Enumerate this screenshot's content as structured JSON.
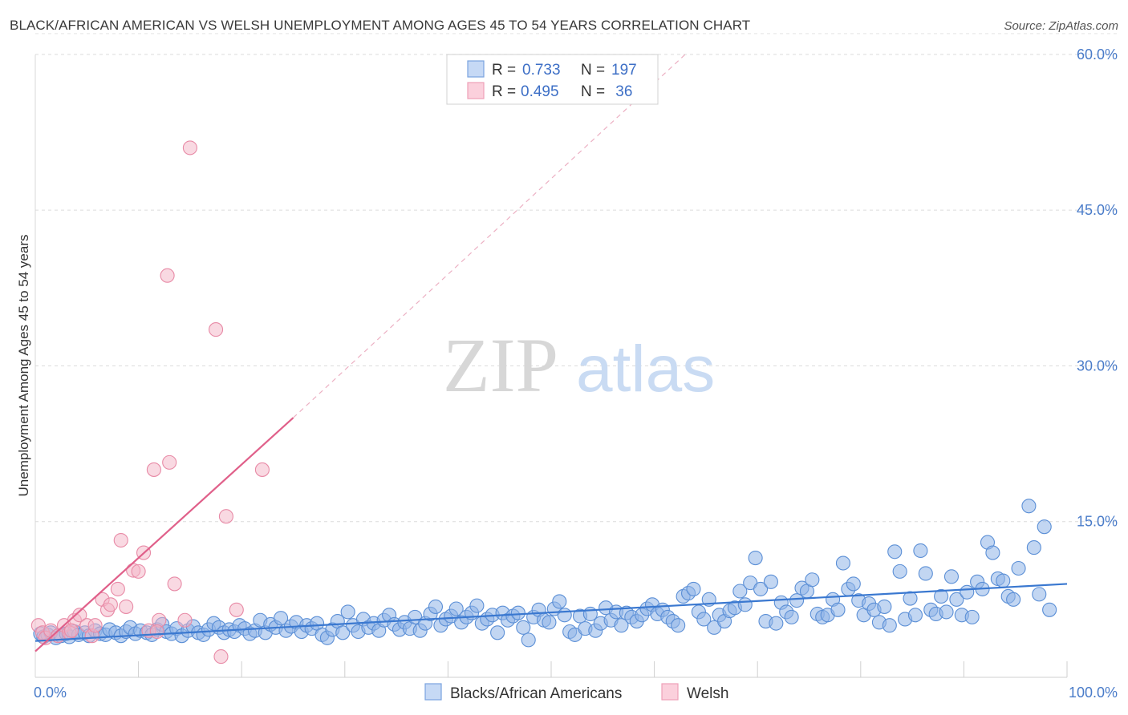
{
  "title": "BLACK/AFRICAN AMERICAN VS WELSH UNEMPLOYMENT AMONG AGES 45 TO 54 YEARS CORRELATION CHART",
  "source": "Source: ZipAtlas.com",
  "watermark": {
    "zip": "ZIP",
    "atlas": "atlas"
  },
  "colors": {
    "blue": "#8fb4e8",
    "blue_stroke": "#5b8fd6",
    "blue_line": "#3a78d0",
    "pink": "#f4b3c6",
    "pink_stroke": "#e88aa6",
    "pink_line": "#e0608a"
  },
  "legend": {
    "rows": [
      {
        "r_label": "R =",
        "r_value": "0.733",
        "n_label": "N =",
        "n_value": "197"
      },
      {
        "r_label": "R =",
        "r_value": "0.495",
        "n_label": "N =",
        "n_value": " 36"
      }
    ]
  },
  "bottom_legend": [
    "Blacks/African Americans",
    "Welsh"
  ],
  "chart_data": {
    "type": "scatter",
    "xlabel": "",
    "ylabel": "Unemployment Among Ages 45 to 54 years",
    "xlim": [
      0,
      100
    ],
    "ylim": [
      0,
      64
    ],
    "x_tick_labels": [
      "0.0%",
      "100.0%"
    ],
    "y_ticks": [
      15,
      30,
      45,
      60
    ],
    "y_tick_labels": [
      "15.0%",
      "30.0%",
      "45.0%",
      "60.0%"
    ],
    "grid": true,
    "legend_position": "top-center",
    "series": [
      {
        "name": "Blacks/African Americans",
        "trend": {
          "x": [
            0,
            100
          ],
          "y": [
            3.5,
            9.0
          ]
        },
        "points": [
          [
            0.5,
            4.2
          ],
          [
            0.8,
            3.9
          ],
          [
            1.2,
            4.1
          ],
          [
            1.5,
            4.3
          ],
          [
            2.0,
            3.8
          ],
          [
            2.5,
            4.0
          ],
          [
            3.0,
            4.2
          ],
          [
            3.3,
            3.9
          ],
          [
            3.8,
            4.4
          ],
          [
            4.2,
            4.1
          ],
          [
            4.8,
            4.3
          ],
          [
            5.2,
            4.0
          ],
          [
            5.8,
            4.5
          ],
          [
            6.3,
            4.2
          ],
          [
            6.8,
            4.1
          ],
          [
            7.2,
            4.6
          ],
          [
            7.8,
            4.3
          ],
          [
            8.3,
            4.0
          ],
          [
            8.8,
            4.4
          ],
          [
            9.2,
            4.8
          ],
          [
            9.7,
            4.2
          ],
          [
            10.2,
            4.5
          ],
          [
            10.8,
            4.3
          ],
          [
            11.3,
            4.1
          ],
          [
            11.8,
            4.6
          ],
          [
            12.3,
            5.1
          ],
          [
            12.7,
            4.4
          ],
          [
            13.2,
            4.2
          ],
          [
            13.7,
            4.7
          ],
          [
            14.2,
            4.0
          ],
          [
            14.8,
            4.5
          ],
          [
            15.3,
            4.9
          ],
          [
            15.8,
            4.3
          ],
          [
            16.3,
            4.1
          ],
          [
            16.8,
            4.6
          ],
          [
            17.3,
            5.2
          ],
          [
            17.8,
            4.8
          ],
          [
            18.3,
            4.3
          ],
          [
            18.8,
            4.6
          ],
          [
            19.3,
            4.4
          ],
          [
            19.8,
            5.0
          ],
          [
            20.3,
            4.7
          ],
          [
            20.8,
            4.2
          ],
          [
            21.3,
            4.5
          ],
          [
            21.8,
            5.5
          ],
          [
            22.3,
            4.3
          ],
          [
            22.8,
            5.1
          ],
          [
            23.3,
            4.8
          ],
          [
            23.8,
            5.7
          ],
          [
            24.3,
            4.5
          ],
          [
            24.8,
            4.9
          ],
          [
            25.3,
            5.3
          ],
          [
            25.8,
            4.4
          ],
          [
            26.3,
            5.0
          ],
          [
            26.8,
            4.7
          ],
          [
            27.3,
            5.2
          ],
          [
            27.8,
            4.1
          ],
          [
            28.3,
            3.8
          ],
          [
            28.8,
            4.6
          ],
          [
            29.3,
            5.4
          ],
          [
            29.8,
            4.3
          ],
          [
            30.3,
            6.3
          ],
          [
            30.8,
            5.0
          ],
          [
            31.3,
            4.4
          ],
          [
            31.8,
            5.6
          ],
          [
            32.3,
            4.8
          ],
          [
            32.8,
            5.2
          ],
          [
            33.3,
            4.5
          ],
          [
            33.8,
            5.5
          ],
          [
            34.3,
            6.0
          ],
          [
            34.8,
            5.1
          ],
          [
            35.3,
            4.6
          ],
          [
            35.8,
            5.3
          ],
          [
            36.3,
            4.7
          ],
          [
            36.8,
            5.8
          ],
          [
            37.3,
            4.5
          ],
          [
            37.8,
            5.2
          ],
          [
            38.3,
            6.1
          ],
          [
            38.8,
            6.8
          ],
          [
            39.3,
            5.0
          ],
          [
            39.8,
            5.6
          ],
          [
            40.3,
            5.9
          ],
          [
            40.8,
            6.6
          ],
          [
            41.3,
            5.3
          ],
          [
            41.8,
            5.8
          ],
          [
            42.3,
            6.2
          ],
          [
            42.8,
            6.9
          ],
          [
            43.3,
            5.2
          ],
          [
            43.8,
            5.6
          ],
          [
            44.3,
            6.0
          ],
          [
            44.8,
            4.3
          ],
          [
            45.3,
            6.2
          ],
          [
            45.8,
            5.5
          ],
          [
            46.3,
            5.9
          ],
          [
            46.8,
            6.2
          ],
          [
            47.3,
            4.8
          ],
          [
            47.8,
            3.6
          ],
          [
            48.3,
            5.8
          ],
          [
            48.8,
            6.5
          ],
          [
            49.3,
            5.5
          ],
          [
            49.8,
            5.3
          ],
          [
            50.3,
            6.6
          ],
          [
            50.8,
            7.3
          ],
          [
            51.3,
            6.0
          ],
          [
            51.8,
            4.4
          ],
          [
            52.3,
            4.1
          ],
          [
            52.8,
            5.9
          ],
          [
            53.3,
            4.7
          ],
          [
            53.8,
            6.1
          ],
          [
            54.3,
            4.5
          ],
          [
            54.8,
            5.2
          ],
          [
            55.3,
            6.7
          ],
          [
            55.8,
            5.5
          ],
          [
            56.3,
            6.3
          ],
          [
            56.8,
            5.0
          ],
          [
            57.3,
            6.2
          ],
          [
            57.8,
            5.8
          ],
          [
            58.3,
            5.4
          ],
          [
            58.8,
            6.0
          ],
          [
            59.3,
            6.6
          ],
          [
            59.8,
            7.0
          ],
          [
            60.3,
            6.1
          ],
          [
            60.8,
            6.5
          ],
          [
            61.3,
            5.8
          ],
          [
            61.8,
            5.4
          ],
          [
            62.3,
            5.0
          ],
          [
            62.8,
            7.8
          ],
          [
            63.3,
            8.1
          ],
          [
            63.8,
            8.5
          ],
          [
            64.3,
            6.3
          ],
          [
            64.8,
            5.6
          ],
          [
            65.3,
            7.5
          ],
          [
            65.8,
            4.8
          ],
          [
            66.3,
            6.0
          ],
          [
            66.8,
            5.4
          ],
          [
            67.3,
            6.4
          ],
          [
            67.8,
            6.7
          ],
          [
            68.3,
            8.3
          ],
          [
            68.8,
            7.0
          ],
          [
            69.3,
            9.1
          ],
          [
            69.8,
            11.5
          ],
          [
            70.3,
            8.5
          ],
          [
            70.8,
            5.4
          ],
          [
            71.3,
            9.2
          ],
          [
            71.8,
            5.2
          ],
          [
            72.3,
            7.2
          ],
          [
            72.8,
            6.3
          ],
          [
            73.3,
            5.8
          ],
          [
            73.8,
            7.4
          ],
          [
            74.3,
            8.6
          ],
          [
            74.8,
            8.3
          ],
          [
            75.3,
            9.4
          ],
          [
            75.8,
            6.1
          ],
          [
            76.3,
            5.8
          ],
          [
            76.8,
            6.0
          ],
          [
            77.3,
            7.5
          ],
          [
            77.8,
            6.5
          ],
          [
            78.3,
            11.0
          ],
          [
            78.8,
            8.5
          ],
          [
            79.3,
            9.0
          ],
          [
            79.8,
            7.4
          ],
          [
            80.3,
            6.0
          ],
          [
            80.8,
            7.1
          ],
          [
            81.3,
            6.5
          ],
          [
            81.8,
            5.3
          ],
          [
            82.3,
            6.8
          ],
          [
            82.8,
            5.0
          ],
          [
            83.3,
            12.1
          ],
          [
            83.8,
            10.2
          ],
          [
            84.3,
            5.6
          ],
          [
            84.8,
            7.6
          ],
          [
            85.3,
            6.0
          ],
          [
            85.8,
            12.2
          ],
          [
            86.3,
            10.0
          ],
          [
            86.8,
            6.5
          ],
          [
            87.3,
            6.1
          ],
          [
            87.8,
            7.8
          ],
          [
            88.3,
            6.3
          ],
          [
            88.8,
            9.7
          ],
          [
            89.3,
            7.5
          ],
          [
            89.8,
            6.0
          ],
          [
            90.3,
            8.2
          ],
          [
            90.8,
            5.8
          ],
          [
            91.3,
            9.2
          ],
          [
            91.8,
            8.5
          ],
          [
            92.3,
            13.0
          ],
          [
            92.8,
            12.0
          ],
          [
            93.3,
            9.5
          ],
          [
            93.8,
            9.3
          ],
          [
            94.3,
            7.8
          ],
          [
            94.8,
            7.5
          ],
          [
            95.3,
            10.5
          ],
          [
            96.3,
            16.5
          ],
          [
            96.8,
            12.5
          ],
          [
            97.3,
            8.0
          ],
          [
            97.8,
            14.5
          ],
          [
            98.3,
            6.5
          ]
        ]
      },
      {
        "name": "Welsh",
        "trend": {
          "x": [
            0,
            25
          ],
          "y": [
            2.5,
            25.0
          ],
          "dashed_to": [
            63,
            60
          ]
        },
        "points": [
          [
            0.3,
            5.0
          ],
          [
            0.7,
            4.3
          ],
          [
            1.0,
            3.8
          ],
          [
            1.5,
            4.5
          ],
          [
            2.2,
            4.0
          ],
          [
            2.8,
            5.0
          ],
          [
            3.3,
            4.3
          ],
          [
            3.8,
            5.5
          ],
          [
            4.3,
            6.0
          ],
          [
            5.0,
            5.0
          ],
          [
            5.5,
            4.0
          ],
          [
            6.5,
            7.5
          ],
          [
            7.0,
            6.5
          ],
          [
            7.3,
            7.0
          ],
          [
            8.0,
            8.5
          ],
          [
            8.3,
            13.2
          ],
          [
            8.8,
            6.8
          ],
          [
            9.5,
            10.3
          ],
          [
            10.0,
            10.2
          ],
          [
            10.5,
            12.0
          ],
          [
            11.0,
            4.5
          ],
          [
            11.5,
            20.0
          ],
          [
            12.0,
            5.5
          ],
          [
            12.8,
            38.7
          ],
          [
            13.0,
            20.7
          ],
          [
            13.5,
            9.0
          ],
          [
            14.5,
            5.5
          ],
          [
            15.0,
            51.0
          ],
          [
            17.5,
            33.5
          ],
          [
            18.0,
            2.0
          ],
          [
            18.5,
            15.5
          ],
          [
            19.5,
            6.5
          ],
          [
            22.0,
            20.0
          ],
          [
            3.5,
            4.5
          ],
          [
            5.8,
            5.0
          ],
          [
            11.8,
            4.4
          ]
        ]
      }
    ]
  }
}
